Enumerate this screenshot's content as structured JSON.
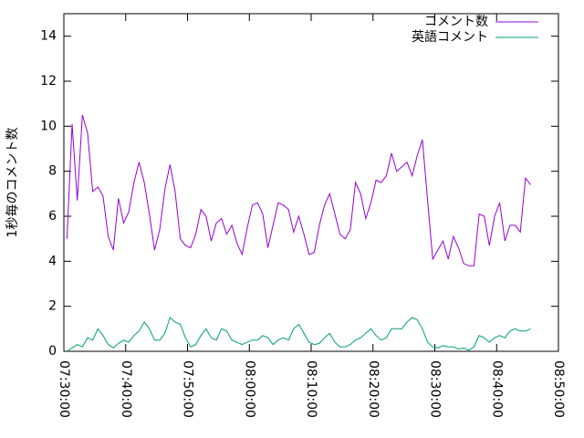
{
  "chart_data": {
    "type": "line",
    "y_label": "1秒毎のコメント数",
    "x": [
      "07:30:30",
      "07:31:20",
      "07:32:10",
      "07:33:00",
      "07:33:50",
      "07:34:40",
      "07:35:30",
      "07:36:20",
      "07:37:10",
      "07:38:00",
      "07:38:50",
      "07:39:40",
      "07:40:30",
      "07:41:20",
      "07:42:10",
      "07:43:00",
      "07:43:50",
      "07:44:40",
      "07:45:30",
      "07:46:20",
      "07:47:10",
      "07:48:00",
      "07:48:50",
      "07:49:40",
      "07:50:30",
      "07:51:20",
      "07:52:10",
      "07:53:00",
      "07:53:50",
      "07:54:40",
      "07:55:30",
      "07:56:20",
      "07:57:10",
      "07:58:00",
      "07:58:50",
      "07:59:40",
      "08:00:30",
      "08:01:20",
      "08:02:10",
      "08:03:00",
      "08:03:50",
      "08:04:40",
      "08:05:30",
      "08:06:20",
      "08:07:10",
      "08:08:00",
      "08:08:50",
      "08:09:40",
      "08:10:30",
      "08:11:20",
      "08:12:10",
      "08:13:00",
      "08:13:50",
      "08:14:40",
      "08:15:30",
      "08:16:20",
      "08:17:10",
      "08:18:00",
      "08:18:50",
      "08:19:40",
      "08:20:30",
      "08:21:20",
      "08:22:10",
      "08:23:00",
      "08:23:50",
      "08:24:40",
      "08:25:30",
      "08:26:20",
      "08:27:10",
      "08:28:00",
      "08:28:50",
      "08:29:40",
      "08:30:30",
      "08:31:20",
      "08:32:10",
      "08:33:00",
      "08:33:50",
      "08:34:40",
      "08:35:30",
      "08:36:20",
      "08:37:10",
      "08:38:00",
      "08:38:50",
      "08:39:40",
      "08:40:30",
      "08:41:20",
      "08:42:10",
      "08:43:00",
      "08:43:50",
      "08:44:40",
      "08:45:30"
    ],
    "series": [
      {
        "name": "コメント数",
        "color": "#9400d3",
        "values": [
          5.0,
          10.1,
          6.7,
          10.5,
          9.7,
          7.1,
          7.3,
          6.9,
          5.1,
          4.5,
          6.8,
          5.7,
          6.2,
          7.5,
          8.4,
          7.5,
          6.1,
          4.5,
          5.4,
          7.2,
          8.3,
          7.1,
          5.0,
          4.7,
          4.6,
          5.2,
          6.3,
          6.0,
          4.9,
          5.7,
          5.9,
          5.2,
          5.6,
          4.8,
          4.3,
          5.5,
          6.5,
          6.6,
          6.1,
          4.6,
          5.6,
          6.6,
          6.5,
          6.3,
          5.3,
          6.0,
          5.2,
          4.3,
          4.4,
          5.6,
          6.5,
          7.0,
          6.1,
          5.2,
          5.0,
          5.4,
          7.5,
          7.0,
          5.9,
          6.6,
          7.6,
          7.5,
          7.8,
          8.8,
          8.0,
          8.2,
          8.4,
          7.8,
          8.7,
          9.4,
          6.7,
          4.1,
          4.5,
          4.9,
          4.1,
          5.1,
          4.6,
          3.9,
          3.8,
          3.8,
          6.1,
          6.0,
          4.7,
          6.0,
          6.6,
          4.9,
          5.6,
          5.6,
          5.3,
          7.7,
          7.4
        ]
      },
      {
        "name": "英語コメント",
        "color": "#009e73",
        "values": [
          0.0,
          0.15,
          0.3,
          0.2,
          0.6,
          0.5,
          1.0,
          0.7,
          0.3,
          0.15,
          0.35,
          0.5,
          0.4,
          0.7,
          0.9,
          1.3,
          1.0,
          0.5,
          0.5,
          0.8,
          1.5,
          1.3,
          1.2,
          0.6,
          0.2,
          0.3,
          0.7,
          1.0,
          0.6,
          0.5,
          1.0,
          0.9,
          0.5,
          0.4,
          0.3,
          0.4,
          0.5,
          0.5,
          0.7,
          0.6,
          0.3,
          0.5,
          0.6,
          0.5,
          1.0,
          1.2,
          0.8,
          0.4,
          0.3,
          0.35,
          0.6,
          0.8,
          0.4,
          0.2,
          0.2,
          0.3,
          0.5,
          0.6,
          0.8,
          1.0,
          0.7,
          0.5,
          0.6,
          1.0,
          1.0,
          1.0,
          1.3,
          1.5,
          1.4,
          1.0,
          0.4,
          0.2,
          0.15,
          0.25,
          0.2,
          0.2,
          0.1,
          0.15,
          0.05,
          0.2,
          0.7,
          0.6,
          0.4,
          0.6,
          0.7,
          0.6,
          0.9,
          1.0,
          0.9,
          0.9,
          1.0
        ]
      }
    ],
    "xlim": [
      "07:30:00",
      "08:50:00"
    ],
    "xticks": [
      "07:30:00",
      "07:40:00",
      "07:50:00",
      "08:00:00",
      "08:10:00",
      "08:20:00",
      "08:30:00",
      "08:40:00",
      "08:50:00"
    ],
    "ylim": [
      0,
      15
    ],
    "yticks": [
      0,
      2,
      4,
      6,
      8,
      10,
      12,
      14
    ],
    "grid": false,
    "legend": "top-right"
  }
}
